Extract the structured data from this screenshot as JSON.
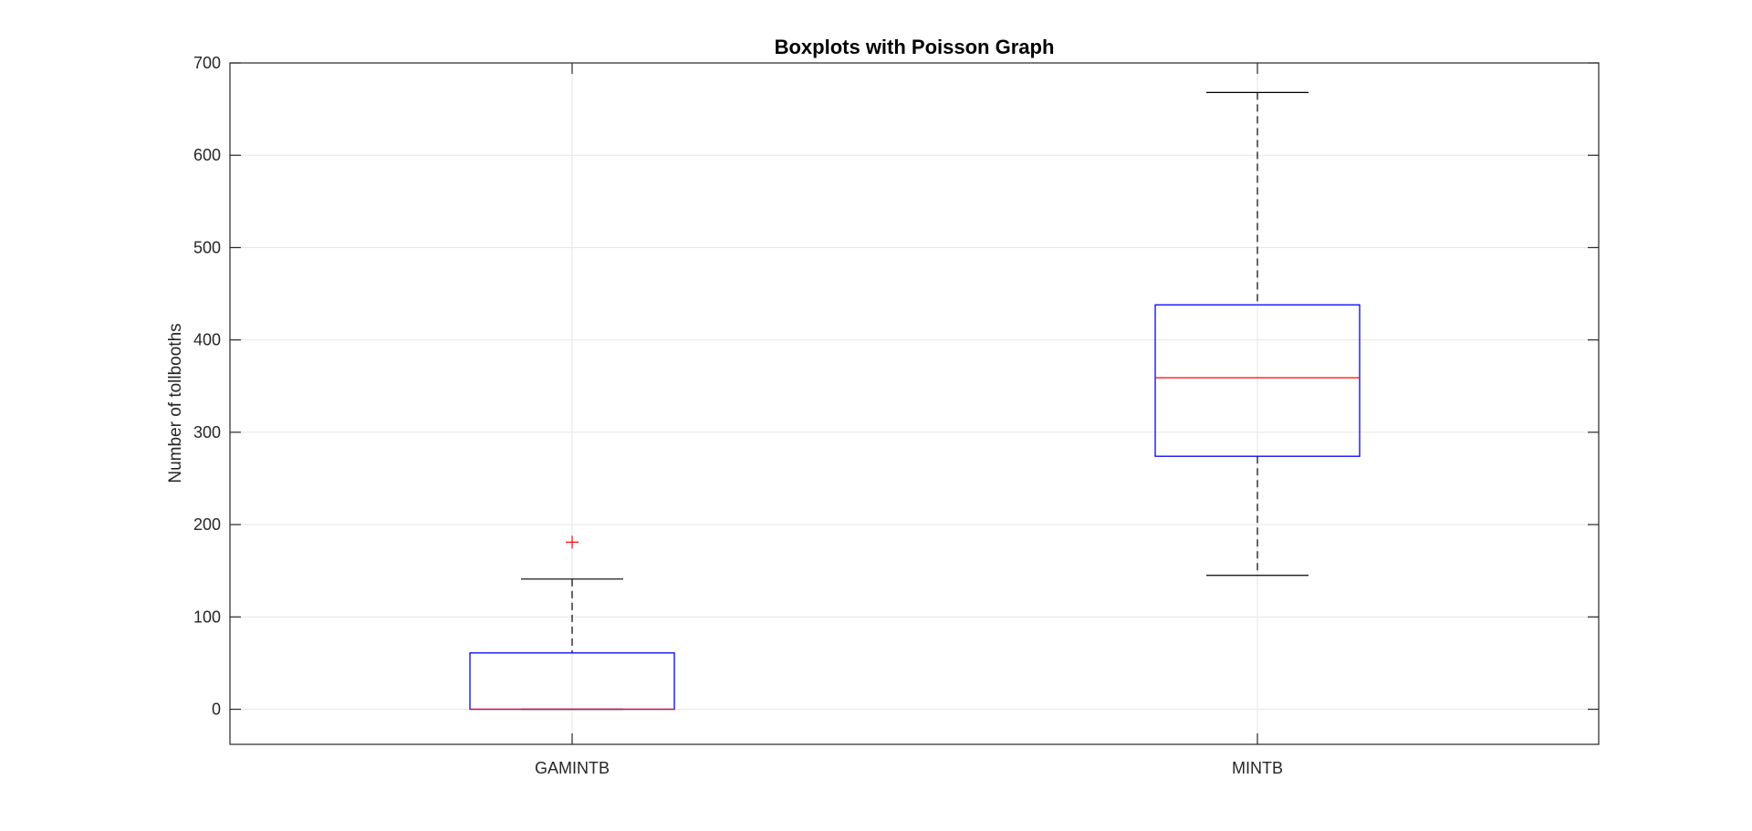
{
  "chart_data": {
    "type": "boxplot",
    "title": "Boxplots with Poisson Graph",
    "xlabel": "",
    "ylabel": "Number of tollbooths",
    "categories": [
      "GAMINTB",
      "MINTB"
    ],
    "ylim": [
      -38,
      700
    ],
    "yticks": [
      0,
      100,
      200,
      300,
      400,
      500,
      600,
      700
    ],
    "grid": true,
    "boxes": [
      {
        "category": "GAMINTB",
        "whisker_low": 0,
        "q1": 0,
        "median": 0,
        "q3": 61,
        "whisker_high": 141,
        "outliers": [
          181
        ]
      },
      {
        "category": "MINTB",
        "whisker_low": 145,
        "q1": 274,
        "median": 359,
        "q3": 438,
        "whisker_high": 668,
        "outliers": []
      }
    ],
    "colors": {
      "box": "#0000ff",
      "median": "#ff0000",
      "whisker": "#000000",
      "outlier": "#ff0000",
      "grid": "#e6e6e6",
      "axis": "#262626"
    }
  }
}
